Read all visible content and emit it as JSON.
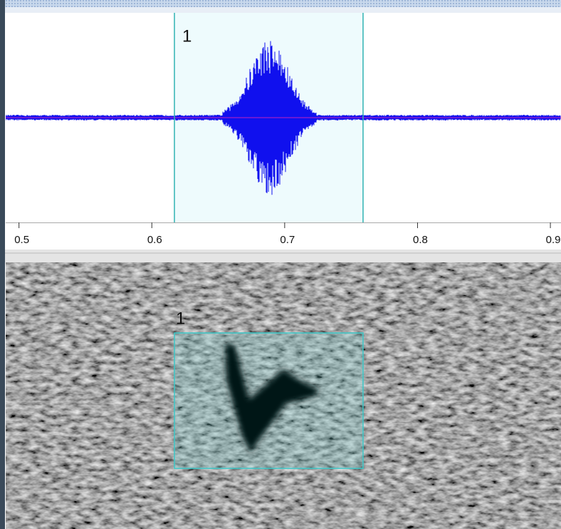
{
  "waveform": {
    "xlim": [
      0.49,
      0.908
    ],
    "xticks": [
      0.5,
      0.6,
      0.7,
      0.8,
      0.9
    ]
  },
  "selection": {
    "start": 0.617,
    "end": 0.759,
    "label": "1"
  },
  "spectrogram": {
    "selection_label": "1"
  }
}
